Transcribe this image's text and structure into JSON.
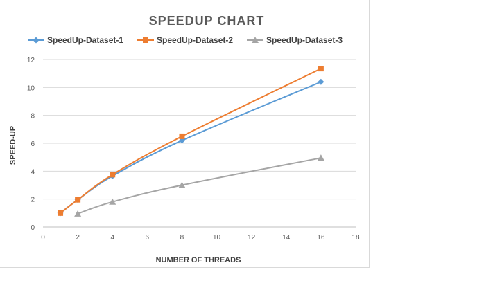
{
  "chart_data": {
    "type": "line",
    "title": "SPEEDUP CHART",
    "xlabel": "NUMBER OF THREADS",
    "ylabel": "SPEED-UP",
    "xlim": [
      0,
      18
    ],
    "ylim": [
      0,
      12
    ],
    "xticks": [
      0,
      2,
      4,
      6,
      8,
      10,
      12,
      14,
      16,
      18
    ],
    "yticks": [
      0,
      2,
      4,
      6,
      8,
      10,
      12
    ],
    "grid": true,
    "legend_position": "top",
    "series": [
      {
        "name": "SpeedUp-Dataset-1",
        "color": "#5b9bd5",
        "marker": "diamond",
        "x": [
          1,
          2,
          4,
          8,
          16
        ],
        "y": [
          1.0,
          1.95,
          3.65,
          6.2,
          10.4
        ]
      },
      {
        "name": "SpeedUp-Dataset-2",
        "color": "#ed7d31",
        "marker": "square",
        "x": [
          1,
          2,
          4,
          8,
          16
        ],
        "y": [
          1.0,
          1.95,
          3.75,
          6.5,
          11.35
        ]
      },
      {
        "name": "SpeedUp-Dataset-3",
        "color": "#a5a5a5",
        "marker": "triangle",
        "x": [
          2,
          4,
          8,
          16
        ],
        "y": [
          0.95,
          1.8,
          3.0,
          4.95
        ]
      }
    ]
  }
}
